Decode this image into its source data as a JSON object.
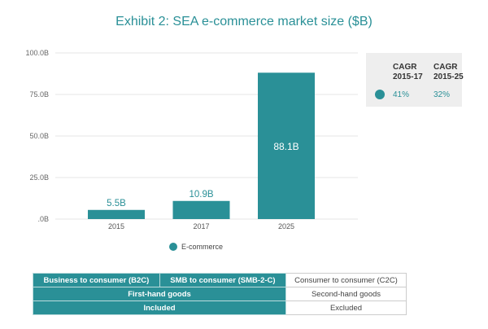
{
  "title": "Exhibit 2: SEA e-commerce market size ($B)",
  "chart_data": {
    "type": "bar",
    "title": "Exhibit 2: SEA e-commerce market size ($B)",
    "categories": [
      "2015",
      "2017",
      "2025"
    ],
    "series": [
      {
        "name": "E-commerce",
        "values": [
          5.5,
          10.9,
          88.1
        ],
        "labels": [
          "5.5B",
          "10.9B",
          "88.1B"
        ]
      }
    ],
    "yticks": [
      ".0B",
      "25.0B",
      "50.0B",
      "75.0B",
      "100.0B"
    ],
    "ylim": [
      0,
      100
    ],
    "grid": true,
    "legend": "bottom",
    "color": "#2a9097"
  },
  "cagr": {
    "headers": [
      "CAGR 2015-17",
      "CAGR 2015-25"
    ],
    "values": [
      "41%",
      "32%"
    ]
  },
  "table": {
    "row1": [
      "Business to consumer (B2C)",
      "SMB to consumer (SMB-2-C)",
      "Consumer to consumer (C2C)"
    ],
    "row2": [
      "First-hand goods",
      "Second-hand goods"
    ],
    "row3": [
      "Included",
      "Excluded"
    ]
  }
}
